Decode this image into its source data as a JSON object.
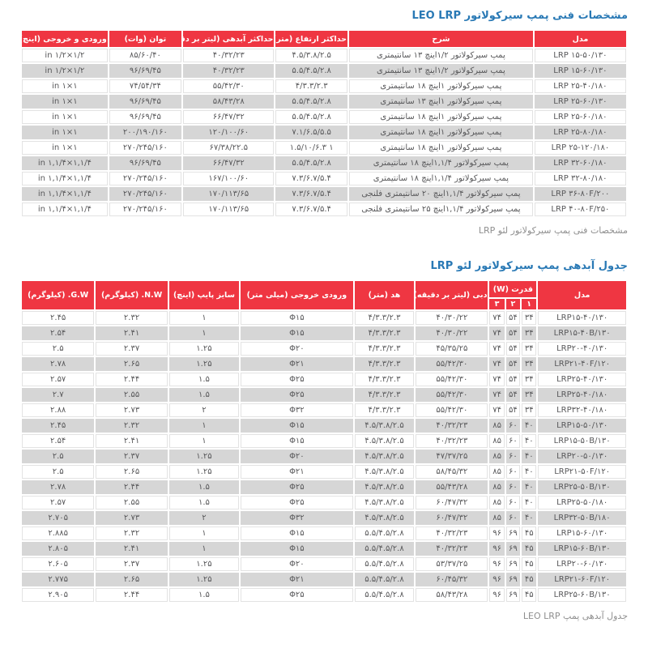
{
  "colors": {
    "header_red": "#ef3642",
    "row_gray": "#d6d6d6",
    "row_white": "#ffffff",
    "title_blue": "#2979b5",
    "caption_gray": "#8f8f8f",
    "body_text": "#58585a",
    "header_text": "#ffffff"
  },
  "table1": {
    "title": "مشخصات فنی پمپ سیرکولاتور LEO LRP",
    "caption": "مشخصات فنی پمپ سیرکولاتور لئو LRP",
    "headers": [
      "مدل",
      "شرح",
      "حداکثر ارتفاع (متر)",
      "حداکثر آبدهی (لیتر بر دقیقه)",
      "توان (وات)",
      "ورودی و خروجی (اینچ)"
    ],
    "rows": [
      [
        "LRP ۱۵-۵۰/۱۳۰",
        "پمپ سیرکولاتور ۱/۲اینچ ۱۳ سانتیمتری",
        "۴.۵/۳.۸/۲.۵",
        "۴۰/۳۲/۲۳",
        "۸۵/۶۰/۴۰",
        "in ۱/۲×۱/۲"
      ],
      [
        "LRP ۱۵-۶۰/۱۳۰",
        "پمپ سیرکولاتور ۱/۲اینچ ۱۳ سانتیمتری",
        "۵.۵/۴.۵/۲.۸",
        "۴۰/۳۲/۲۳",
        "۹۶/۶۹/۴۵",
        "in ۱/۲×۱/۲"
      ],
      [
        "LRP ۲۵-۴۰/۱۸۰",
        "پمپ سیرکولاتور ۱اینچ ۱۸ سانتیمتری",
        "۴/۳.۳/۲.۳",
        "۵۵/۴۲/۳۰",
        "۷۴/۵۴/۳۴",
        "in ۱×۱"
      ],
      [
        "LRP ۲۵-۶۰/۱۳۰",
        "پمپ سیرکولاتور ۱اینچ ۱۳ سانتیمتری",
        "۵.۵/۴.۵/۲.۸",
        "۵۸/۴۳/۲۸",
        "۹۶/۶۹/۴۵",
        "in ۱×۱"
      ],
      [
        "LRP ۲۵-۶۰/۱۸۰",
        "پمپ سیرکولاتور ۱اینچ ۱۸ سانتیمتری",
        "۵.۵/۴.۵/۲.۸",
        "۶۶/۴۷/۳۲",
        "۹۶/۶۹/۴۵",
        "in ۱×۱"
      ],
      [
        "LRP ۲۵-۸۰/۱۸۰",
        "پمپ سیرکولاتور ۱اینچ ۱۸ سانتیمتری",
        "۷.۱/۶.۵/۵.۵",
        "۱۲۰/۱۰۰/۶۰",
        "۲۰۰/۱۹۰/۱۶۰",
        "in ۱×۱"
      ],
      [
        "LRP ۲۵-۱۲۰/۱۸۰",
        "پمپ سیرکولاتور ۱اینچ ۱۸ سانتیمتری",
        "۱ ۱.۵/۱۰/۶.۳",
        "۶۷/۳۸/۲۲.۵",
        "۲۷۰/۲۴۵/۱۶۰",
        "in ۱×۱"
      ],
      [
        "LRP ۳۲-۶۰/۱۸۰",
        "پمپ سیرکولاتور ۱,۱/۴اینچ ۱۸ سانتیمتری",
        "۵.۵/۴.۵/۲.۸",
        "۶۶/۴۷/۳۲",
        "۹۶/۶۹/۴۵",
        "in ۱,۱/۴×۱,۱/۴"
      ],
      [
        "LRP ۳۲-۸۰/۱۸۰",
        "پمپ سیرکولاتور ۱,۱/۴اینچ ۱۸ سانتیمتری",
        "۷.۳/۶.۷/۵.۴",
        "۱۶۷/۱۰۰/۶۰",
        "۲۷۰/۲۴۵/۱۶۰",
        "in ۱,۱/۴×۱,۱/۴"
      ],
      [
        "LRP ۳۶-۸۰F/۲۰۰",
        "پمپ سیرکولاتور ۱,۱/۴اینچ ۲۰ سانتیمتری فلنجی",
        "۷.۳/۶.۷/۵.۴",
        "۱۷۰/۱۱۳/۶۵",
        "۲۷۰/۲۴۵/۱۶۰",
        "in ۱,۱/۴×۱,۱/۴"
      ],
      [
        "LRP ۴۰-۸۰F/۲۵۰",
        "پمپ سیرکولاتور ۱,۱/۴اینچ ۲۵ سانتیمتری فلنجی",
        "۷.۳/۶.۷/۵.۴",
        "۱۷۰/۱۱۳/۶۵",
        "۲۷۰/۲۴۵/۱۶۰",
        "in ۱,۱/۴×۱,۱/۴"
      ]
    ]
  },
  "table2": {
    "title": "جدول آبدهی پمپ سیرکولاتور لئو LRP",
    "caption": "جدول آبدهی پمپ LEO LRP",
    "headers": {
      "model": "مدل",
      "power": "قدرت (W)",
      "speed1": "۱",
      "speed2": "۲",
      "speed3": "۳",
      "flow": "دبی (لیتر بر دقیقه)",
      "head": "هد (متر)",
      "outlet": "ورودی خروجی (میلی متر)",
      "pipe": "سایز پایپ (اینچ)",
      "nw": "N.W. (کیلوگرم)",
      "gw": "G.W. (کیلوگرم)"
    },
    "rows": [
      [
        "LRP۱۵-۴۰/۱۳۰",
        "۳۴",
        "۵۴",
        "۷۴",
        "۴۰/۳۰/۲۲",
        "۴/۳.۳/۲.۳",
        "Φ۱۵",
        "۱",
        "۲.۳۲",
        "۲.۴۵"
      ],
      [
        "LRP۱۵-۴۰B/۱۳۰",
        "۳۴",
        "۵۴",
        "۷۴",
        "۴۰/۳۰/۲۲",
        "۴/۳.۳/۲.۳",
        "Φ۱۵",
        "۱",
        "۲.۴۱",
        "۲.۵۴"
      ],
      [
        "LRP۲۰-۴۰/۱۳۰",
        "۳۴",
        "۵۴",
        "۷۴",
        "۴۵/۳۵/۲۵",
        "۴/۳.۳/۲.۳",
        "Φ۲۰",
        "۱.۲۵",
        "۲.۳۷",
        "۲.۵"
      ],
      [
        "LRP۲۱-۴۰F/۱۲۰",
        "۳۴",
        "۵۴",
        "۷۴",
        "۵۵/۴۲/۳۰",
        "۴/۳.۳/۲.۳",
        "Φ۲۱",
        "۱.۲۵",
        "۲.۶۵",
        "۲.۷۸"
      ],
      [
        "LRP۲۵-۴۰/۱۳۰",
        "۳۴",
        "۵۴",
        "۷۴",
        "۵۵/۴۲/۳۰",
        "۴/۳.۳/۲.۳",
        "Φ۲۵",
        "۱.۵",
        "۲.۴۴",
        "۲.۵۷"
      ],
      [
        "LRP۲۵-۴۰/۱۸۰",
        "۳۴",
        "۵۴",
        "۷۴",
        "۵۵/۴۲/۳۰",
        "۴/۳.۳/۲.۳",
        "Φ۲۵",
        "۱.۵",
        "۲.۵۵",
        "۲.۷"
      ],
      [
        "LRP۳۲-۴۰/۱۸۰",
        "۳۴",
        "۵۴",
        "۷۴",
        "۵۵/۴۲/۳۰",
        "۴/۳.۳/۲.۳",
        "Φ۳۲",
        "۲",
        "۲.۷۳",
        "۲.۸۸"
      ],
      [
        "LRP۱۵-۵۰/۱۳۰",
        "۴۰",
        "۶۰",
        "۸۵",
        "۴۰/۳۲/۲۳",
        "۴.۵/۳.۸/۲.۵",
        "Φ۱۵",
        "۱",
        "۲.۳۲",
        "۲.۴۵"
      ],
      [
        "LRP۱۵-۵۰B/۱۳۰",
        "۴۰",
        "۶۰",
        "۸۵",
        "۴۰/۳۲/۲۳",
        "۴.۵/۳.۸/۲.۵",
        "Φ۱۵",
        "۱",
        "۲.۴۱",
        "۲.۵۴"
      ],
      [
        "LRP۲۰-۵۰/۱۳۰",
        "۴۰",
        "۶۰",
        "۸۵",
        "۴۷/۳۷/۲۵",
        "۴.۵/۳.۸/۲.۵",
        "Φ۲۰",
        "۱.۲۵",
        "۲.۳۷",
        "۲.۵"
      ],
      [
        "LRP۲۱-۵۰F/۱۲۰",
        "۴۰",
        "۶۰",
        "۸۵",
        "۵۸/۴۵/۳۲",
        "۴.۵/۳.۸/۲.۵",
        "Φ۲۱",
        "۱.۲۵",
        "۲.۶۵",
        "۲.۵"
      ],
      [
        "LRP۲۵-۵۰B/۱۳۰",
        "۴۰",
        "۶۰",
        "۸۵",
        "۵۵/۴۳/۲۸",
        "۴.۵/۳.۸/۲.۵",
        "Φ۲۵",
        "۱.۵",
        "۲.۴۴",
        "۲.۷۸"
      ],
      [
        "LRP۲۵-۵۰/۱۸۰",
        "۴۰",
        "۶۰",
        "۸۵",
        "۶۰/۴۷/۳۲",
        "۴.۵/۳.۸/۲.۵",
        "Φ۲۵",
        "۱.۵",
        "۲.۵۵",
        "۲.۵۷"
      ],
      [
        "LRP۳۲-۵۰B/۱۸۰",
        "۴۰",
        "۶۰",
        "۸۵",
        "۶۰/۴۷/۳۲",
        "۴.۵/۳.۸/۲.۵",
        "Φ۳۲",
        "۲",
        "۲.۷۳",
        "۲.۷۰۵"
      ],
      [
        "LRP۱۵-۶۰/۱۳۰",
        "۴۵",
        "۶۹",
        "۹۶",
        "۴۰/۳۲/۲۳",
        "۵.۵/۴.۵/۲.۸",
        "Φ۱۵",
        "۱",
        "۲.۳۲",
        "۲.۸۸۵"
      ],
      [
        "LRP۱۵-۶۰B/۱۳۰",
        "۴۵",
        "۶۹",
        "۹۶",
        "۴۰/۳۲/۲۳",
        "۵.۵/۴.۵/۲.۸",
        "Φ۱۵",
        "۱",
        "۲.۴۱",
        "۲.۸۰۵"
      ],
      [
        "LRP۲۰-۶۰/۱۳۰",
        "۴۵",
        "۶۹",
        "۹۶",
        "۵۳/۳۷/۲۵",
        "۵.۵/۴.۵/۲.۸",
        "Φ۲۰",
        "۱.۲۵",
        "۲.۳۷",
        "۲.۶۰۵"
      ],
      [
        "LRP۲۱-۶۰F/۱۲۰",
        "۴۵",
        "۶۹",
        "۹۶",
        "۶۰/۴۵/۳۲",
        "۵.۵/۴.۵/۲.۸",
        "Φ۲۱",
        "۱.۲۵",
        "۲.۶۵",
        "۲.۷۷۵"
      ],
      [
        "LRP۲۵-۶۰B/۱۳۰",
        "۴۵",
        "۶۹",
        "۹۶",
        "۵۸/۴۳/۲۸",
        "۵.۵/۴.۵/۲.۸",
        "Φ۲۵",
        "۱.۵",
        "۲.۴۴",
        "۲.۹۰۵"
      ]
    ]
  }
}
